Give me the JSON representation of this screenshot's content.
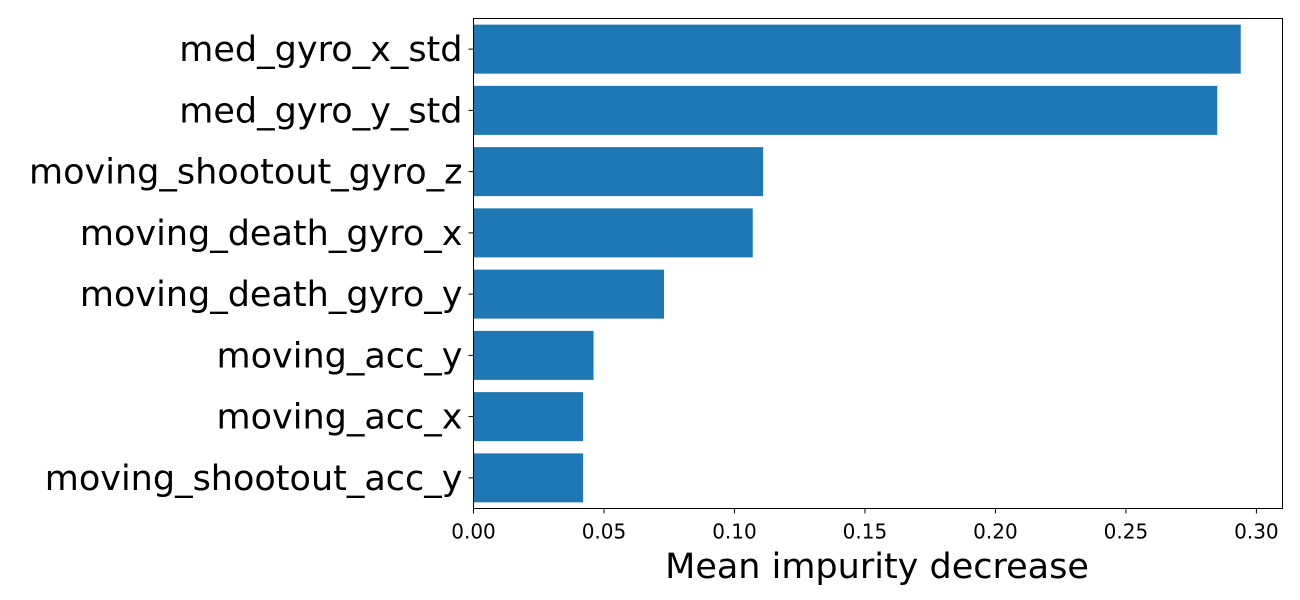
{
  "chart_data": {
    "type": "bar",
    "orientation": "horizontal",
    "categories": [
      "med_gyro_x_std",
      "med_gyro_y_std",
      "moving_shootout_gyro_z",
      "moving_death_gyro_x",
      "moving_death_gyro_y",
      "moving_acc_y",
      "moving_acc_x",
      "moving_shootout_acc_y"
    ],
    "values": [
      0.294,
      0.285,
      0.111,
      0.107,
      0.073,
      0.046,
      0.042,
      0.042
    ],
    "xlabel": "Mean impurity decrease",
    "ylabel": "",
    "xlim": [
      0.0,
      0.31
    ],
    "xticks": [
      "0.00",
      "0.05",
      "0.10",
      "0.15",
      "0.20",
      "0.25",
      "0.30"
    ],
    "grid": false,
    "bar_color": "#1f77b4"
  }
}
